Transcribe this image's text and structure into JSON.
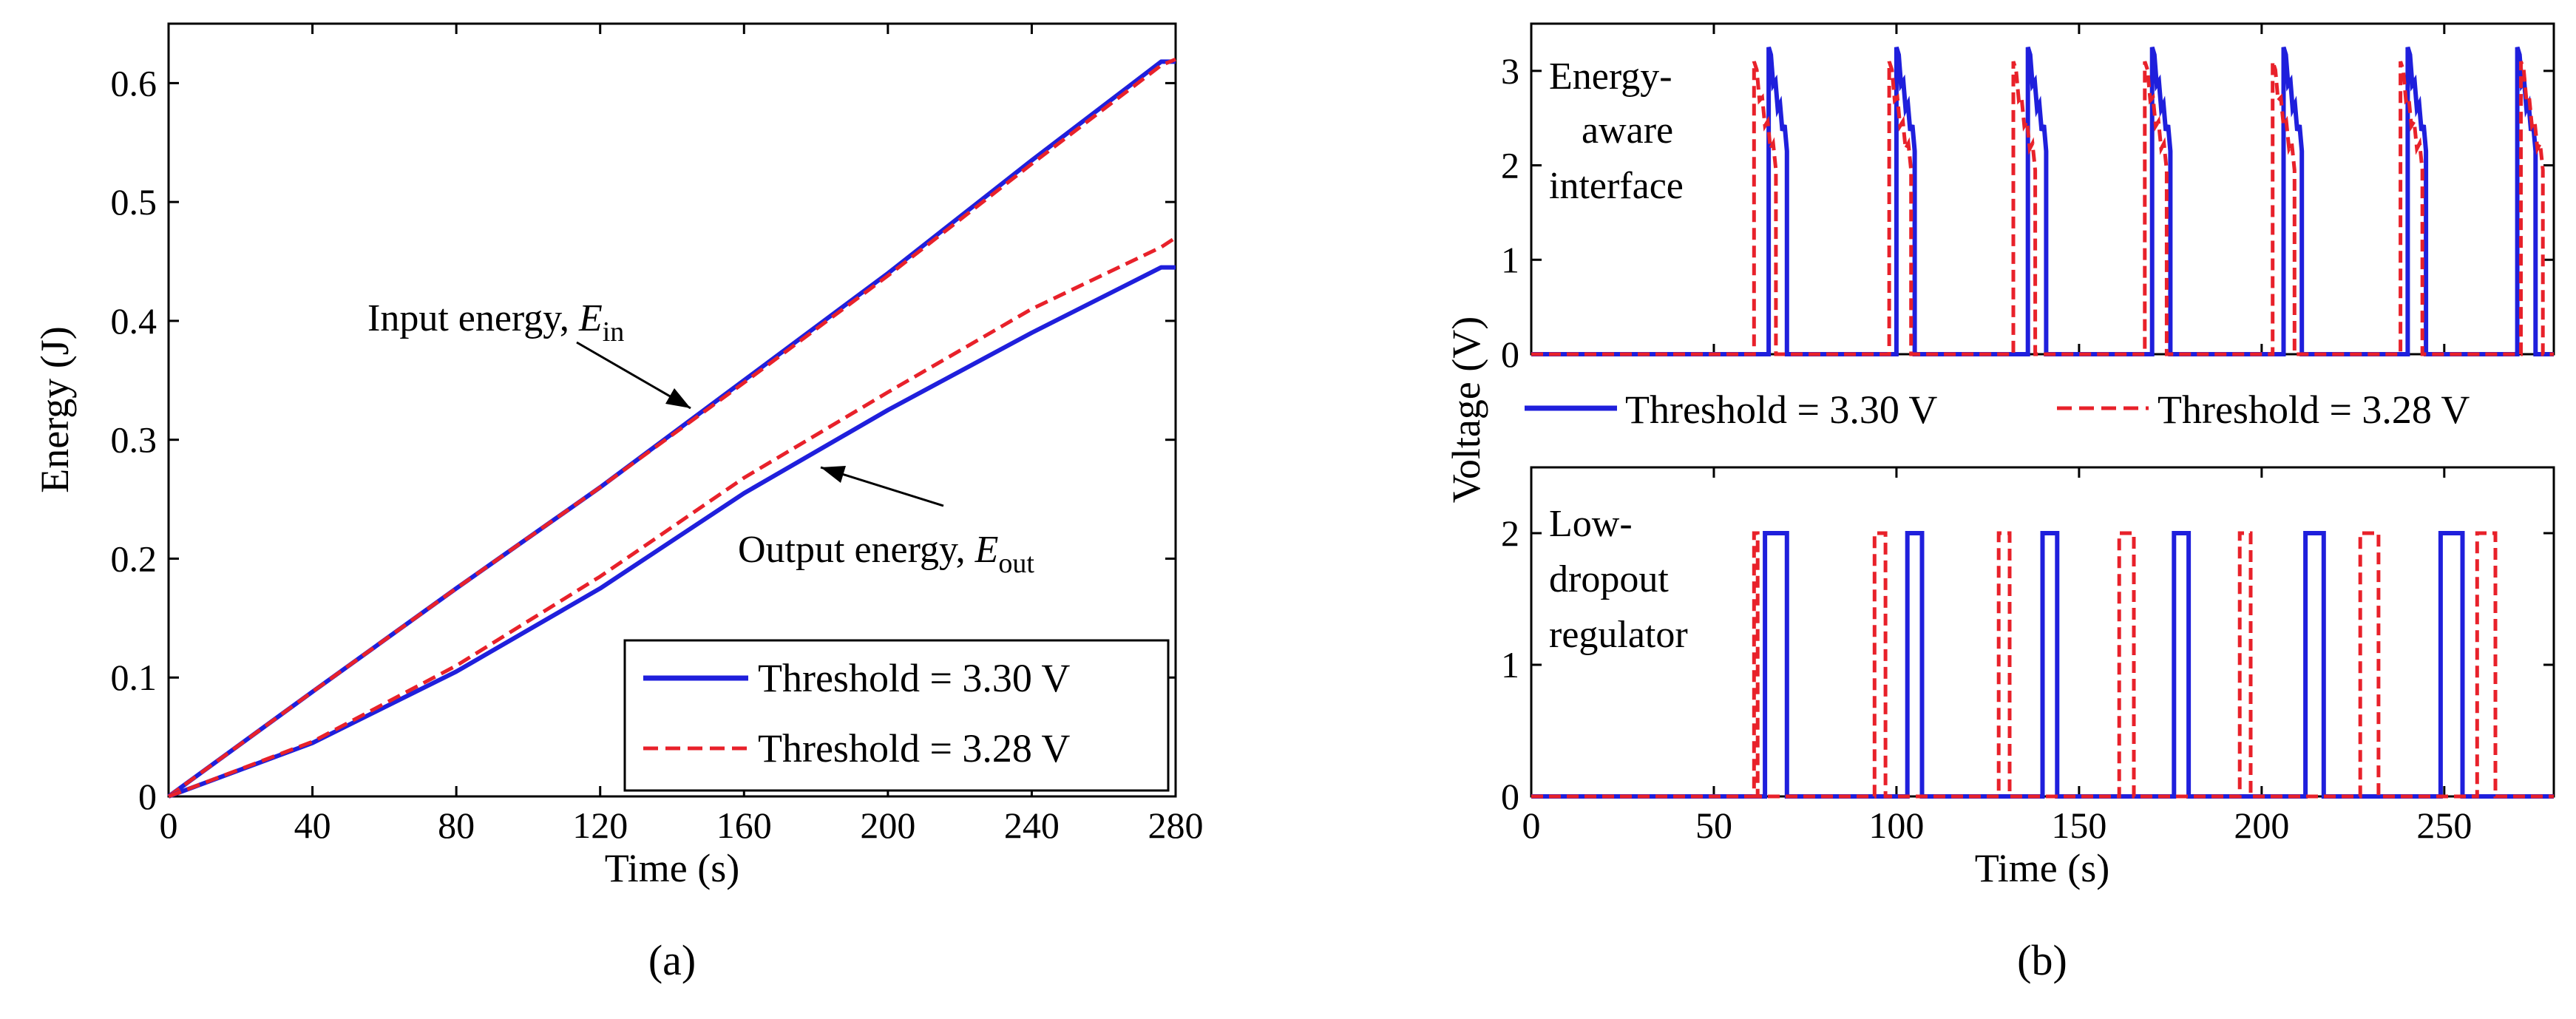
{
  "chart_data": [
    {
      "id": "a",
      "type": "line",
      "panel_label": "(a)",
      "xlabel": "Time (s)",
      "ylabel": "Energy (J)",
      "xlim": [
        0,
        280
      ],
      "ylim": [
        0,
        0.65
      ],
      "xticks": [
        0,
        40,
        80,
        120,
        160,
        200,
        240,
        280
      ],
      "yticks": [
        0,
        0.1,
        0.2,
        0.3,
        0.4,
        0.5,
        0.6
      ],
      "grid": false,
      "legend_position": "bottom-right",
      "legend": [
        "Threshold = 3.30 V",
        "Threshold = 3.28 V"
      ],
      "series": [
        {
          "group": "Input energy",
          "legend_index": 0,
          "color": "#1f1fdc",
          "style": "solid",
          "x": [
            0,
            40,
            80,
            120,
            160,
            200,
            240,
            276,
            280
          ],
          "y": [
            0,
            0.088,
            0.175,
            0.26,
            0.35,
            0.44,
            0.535,
            0.618,
            0.618
          ]
        },
        {
          "group": "Input energy",
          "legend_index": 1,
          "color": "#e8212a",
          "style": "dashed",
          "x": [
            0,
            40,
            80,
            120,
            160,
            200,
            240,
            276,
            280
          ],
          "y": [
            0,
            0.088,
            0.175,
            0.26,
            0.348,
            0.438,
            0.532,
            0.615,
            0.62
          ]
        },
        {
          "group": "Output energy",
          "legend_index": 0,
          "color": "#1f1fdc",
          "style": "solid",
          "x": [
            0,
            40,
            80,
            120,
            160,
            200,
            240,
            276,
            280
          ],
          "y": [
            0,
            0.045,
            0.105,
            0.175,
            0.255,
            0.325,
            0.39,
            0.445,
            0.445
          ]
        },
        {
          "group": "Output energy",
          "legend_index": 1,
          "color": "#e8212a",
          "style": "dashed",
          "x": [
            0,
            40,
            80,
            120,
            160,
            200,
            240,
            276,
            280
          ],
          "y": [
            0,
            0.046,
            0.11,
            0.185,
            0.268,
            0.34,
            0.41,
            0.462,
            0.47
          ]
        }
      ],
      "annotations": [
        {
          "text": "Input energy, ",
          "symbol": "E",
          "subscript": "in",
          "point": [
            142,
            0.317
          ]
        },
        {
          "text": "Output energy, ",
          "symbol": "E",
          "subscript": "out",
          "point": [
            178,
            0.283
          ]
        }
      ]
    },
    {
      "id": "b",
      "type": "line",
      "panel_label": "(b)",
      "xlabel": "Time (s)",
      "ylabel": "Voltage (V)",
      "xlim": [
        0,
        280
      ],
      "xticks": [
        0,
        50,
        100,
        150,
        200,
        250
      ],
      "grid": false,
      "legend": [
        "Threshold = 3.30 V",
        "Threshold = 3.28 V"
      ],
      "subplots": [
        {
          "name": "Energy-aware interface",
          "label_lines": [
            "Energy-",
            "aware",
            "interface"
          ],
          "ylim": [
            0,
            3.5
          ],
          "yticks": [
            0,
            1,
            2,
            3
          ],
          "series": [
            {
              "legend_index": 0,
              "color": "#1f1fdc",
              "style": "solid",
              "pulse_starts": [
                65,
                100,
                136,
                170,
                206,
                240,
                270
              ],
              "peak": 3.25,
              "tail": 2.2,
              "width": 5
            },
            {
              "legend_index": 1,
              "color": "#e8212a",
              "style": "dashed",
              "pulse_starts": [
                61,
                98,
                132,
                168,
                203,
                238,
                271
              ],
              "peak": 3.1,
              "tail": 2.0,
              "width": 6
            }
          ]
        },
        {
          "name": "Low-dropout regulator",
          "label_lines": [
            "Low-",
            "dropout",
            "regulator"
          ],
          "ylim": [
            0,
            2.5
          ],
          "yticks": [
            0,
            1,
            2
          ],
          "series": [
            {
              "legend_index": 0,
              "color": "#1f1fdc",
              "style": "solid",
              "pulses": [
                [
                  64,
                  70
                ],
                [
                  103,
                  107
                ],
                [
                  140,
                  144
                ],
                [
                  176,
                  180
                ],
                [
                  212,
                  217
                ],
                [
                  249,
                  255
                ]
              ],
              "level": 2
            },
            {
              "legend_index": 1,
              "color": "#e8212a",
              "style": "dashed",
              "pulses": [
                [
                  61,
                  62
                ],
                [
                  94,
                  97
                ],
                [
                  128,
                  131
                ],
                [
                  161,
                  165
                ],
                [
                  194,
                  197
                ],
                [
                  227,
                  232
                ],
                [
                  259,
                  264
                ]
              ],
              "level": 2
            }
          ]
        }
      ]
    }
  ]
}
